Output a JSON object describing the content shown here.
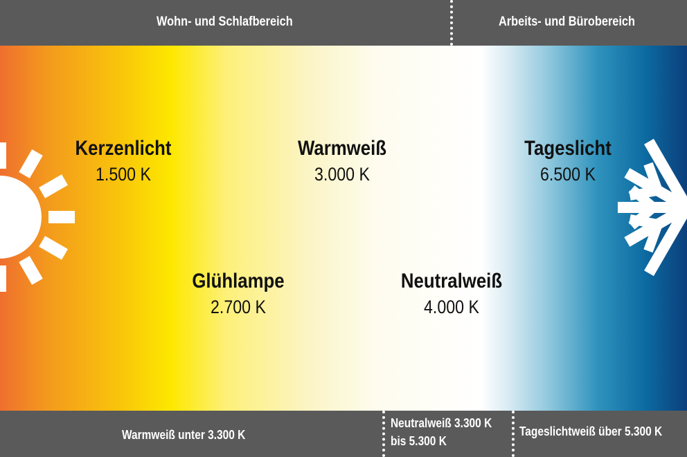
{
  "header": {
    "left_label": "Wohn- und Schlafbereich",
    "right_label": "Arbeits- und Bürobereich"
  },
  "lamps": [
    {
      "name": "Kerzenlicht",
      "kelvin": "1.500 K"
    },
    {
      "name": "Warmweiß",
      "kelvin": "3.000 K"
    },
    {
      "name": "Tageslicht",
      "kelvin": "6.500 K"
    },
    {
      "name": "Glühlampe",
      "kelvin": "2.700 K"
    },
    {
      "name": "Neutralweiß",
      "kelvin": "4.000 K"
    }
  ],
  "footer": {
    "warm_label": "Warmweiß unter 3.300 K",
    "neutral_label_line1": "Neutralweiß 3.300 K",
    "neutral_label_line2": "bis 5.300 K",
    "daylight_label": "Tageslichtweiß über 5.300 K"
  },
  "colors": {
    "bar": "#5a5a5a",
    "warm": "#ef6f2e",
    "yellow": "#fde800",
    "cool": "#0b3f7c"
  },
  "icons": {
    "left": "sun-icon",
    "right": "snowflake-icon"
  }
}
